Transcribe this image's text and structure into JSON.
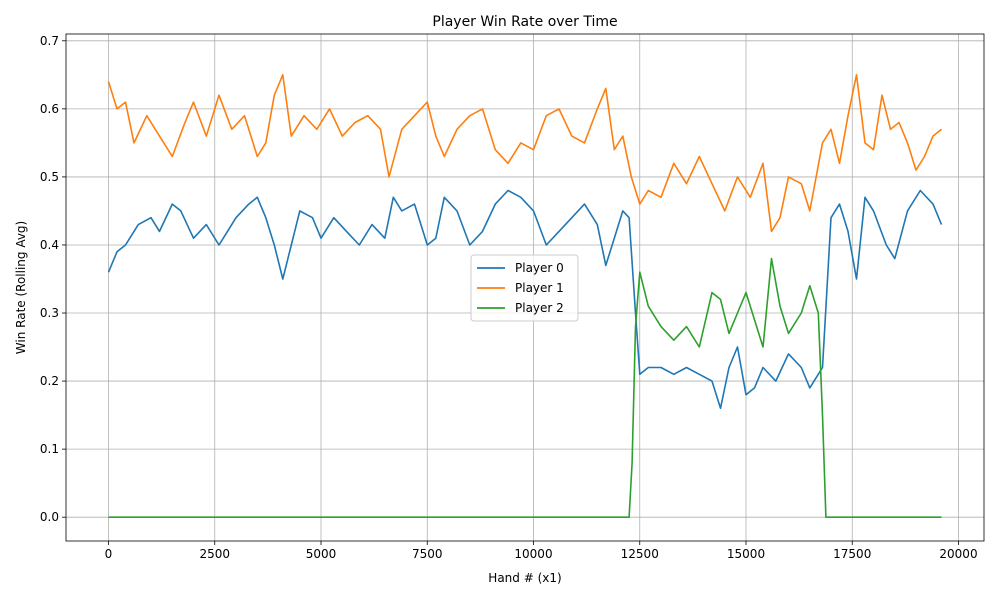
{
  "chart_data": {
    "type": "line",
    "title": "Player Win Rate over Time",
    "xlabel": "Hand # (x1)",
    "ylabel": "Win Rate (Rolling Avg)",
    "xlim": [
      -1000,
      20600
    ],
    "ylim": [
      -0.035,
      0.71
    ],
    "xticks": [
      0,
      2500,
      5000,
      7500,
      10000,
      12500,
      15000,
      17500,
      20000
    ],
    "yticks": [
      0.0,
      0.1,
      0.2,
      0.3,
      0.4,
      0.5,
      0.6,
      0.7
    ],
    "grid": true,
    "legend_position": "center",
    "series": [
      {
        "name": "Player 0",
        "color": "#1f77b4",
        "points": [
          [
            0,
            0.36
          ],
          [
            200,
            0.39
          ],
          [
            400,
            0.4
          ],
          [
            700,
            0.43
          ],
          [
            1000,
            0.44
          ],
          [
            1200,
            0.42
          ],
          [
            1500,
            0.46
          ],
          [
            1700,
            0.45
          ],
          [
            2000,
            0.41
          ],
          [
            2300,
            0.43
          ],
          [
            2600,
            0.4
          ],
          [
            2800,
            0.42
          ],
          [
            3000,
            0.44
          ],
          [
            3300,
            0.46
          ],
          [
            3500,
            0.47
          ],
          [
            3700,
            0.44
          ],
          [
            3900,
            0.4
          ],
          [
            4100,
            0.35
          ],
          [
            4300,
            0.4
          ],
          [
            4500,
            0.45
          ],
          [
            4800,
            0.44
          ],
          [
            5000,
            0.41
          ],
          [
            5300,
            0.44
          ],
          [
            5600,
            0.42
          ],
          [
            5900,
            0.4
          ],
          [
            6200,
            0.43
          ],
          [
            6500,
            0.41
          ],
          [
            6700,
            0.47
          ],
          [
            6900,
            0.45
          ],
          [
            7200,
            0.46
          ],
          [
            7500,
            0.4
          ],
          [
            7700,
            0.41
          ],
          [
            7900,
            0.47
          ],
          [
            8200,
            0.45
          ],
          [
            8500,
            0.4
          ],
          [
            8800,
            0.42
          ],
          [
            9100,
            0.46
          ],
          [
            9400,
            0.48
          ],
          [
            9700,
            0.47
          ],
          [
            10000,
            0.45
          ],
          [
            10300,
            0.4
          ],
          [
            10600,
            0.42
          ],
          [
            10900,
            0.44
          ],
          [
            11200,
            0.46
          ],
          [
            11500,
            0.43
          ],
          [
            11700,
            0.37
          ],
          [
            11900,
            0.41
          ],
          [
            12100,
            0.45
          ],
          [
            12250,
            0.44
          ],
          [
            12400,
            0.3
          ],
          [
            12500,
            0.21
          ],
          [
            12700,
            0.22
          ],
          [
            13000,
            0.22
          ],
          [
            13300,
            0.21
          ],
          [
            13600,
            0.22
          ],
          [
            13900,
            0.21
          ],
          [
            14200,
            0.2
          ],
          [
            14400,
            0.16
          ],
          [
            14600,
            0.22
          ],
          [
            14800,
            0.25
          ],
          [
            15000,
            0.18
          ],
          [
            15200,
            0.19
          ],
          [
            15400,
            0.22
          ],
          [
            15700,
            0.2
          ],
          [
            16000,
            0.24
          ],
          [
            16300,
            0.22
          ],
          [
            16500,
            0.19
          ],
          [
            16800,
            0.22
          ],
          [
            17000,
            0.44
          ],
          [
            17200,
            0.46
          ],
          [
            17400,
            0.42
          ],
          [
            17600,
            0.35
          ],
          [
            17800,
            0.47
          ],
          [
            18000,
            0.45
          ],
          [
            18300,
            0.4
          ],
          [
            18500,
            0.38
          ],
          [
            18800,
            0.45
          ],
          [
            19100,
            0.48
          ],
          [
            19400,
            0.46
          ],
          [
            19600,
            0.43
          ]
        ]
      },
      {
        "name": "Player 1",
        "color": "#ff7f0e",
        "points": [
          [
            0,
            0.64
          ],
          [
            200,
            0.6
          ],
          [
            400,
            0.61
          ],
          [
            600,
            0.55
          ],
          [
            900,
            0.59
          ],
          [
            1200,
            0.56
          ],
          [
            1500,
            0.53
          ],
          [
            1800,
            0.58
          ],
          [
            2000,
            0.61
          ],
          [
            2300,
            0.56
          ],
          [
            2600,
            0.62
          ],
          [
            2900,
            0.57
          ],
          [
            3200,
            0.59
          ],
          [
            3500,
            0.53
          ],
          [
            3700,
            0.55
          ],
          [
            3900,
            0.62
          ],
          [
            4100,
            0.65
          ],
          [
            4300,
            0.56
          ],
          [
            4600,
            0.59
          ],
          [
            4900,
            0.57
          ],
          [
            5200,
            0.6
          ],
          [
            5500,
            0.56
          ],
          [
            5800,
            0.58
          ],
          [
            6100,
            0.59
          ],
          [
            6400,
            0.57
          ],
          [
            6600,
            0.5
          ],
          [
            6900,
            0.57
          ],
          [
            7200,
            0.59
          ],
          [
            7500,
            0.61
          ],
          [
            7700,
            0.56
          ],
          [
            7900,
            0.53
          ],
          [
            8200,
            0.57
          ],
          [
            8500,
            0.59
          ],
          [
            8800,
            0.6
          ],
          [
            9100,
            0.54
          ],
          [
            9400,
            0.52
          ],
          [
            9700,
            0.55
          ],
          [
            10000,
            0.54
          ],
          [
            10300,
            0.59
          ],
          [
            10600,
            0.6
          ],
          [
            10900,
            0.56
          ],
          [
            11200,
            0.55
          ],
          [
            11500,
            0.6
          ],
          [
            11700,
            0.63
          ],
          [
            11900,
            0.54
          ],
          [
            12100,
            0.56
          ],
          [
            12300,
            0.5
          ],
          [
            12500,
            0.46
          ],
          [
            12700,
            0.48
          ],
          [
            13000,
            0.47
          ],
          [
            13300,
            0.52
          ],
          [
            13600,
            0.49
          ],
          [
            13900,
            0.53
          ],
          [
            14200,
            0.49
          ],
          [
            14500,
            0.45
          ],
          [
            14800,
            0.5
          ],
          [
            15100,
            0.47
          ],
          [
            15400,
            0.52
          ],
          [
            15600,
            0.42
          ],
          [
            15800,
            0.44
          ],
          [
            16000,
            0.5
          ],
          [
            16300,
            0.49
          ],
          [
            16500,
            0.45
          ],
          [
            16800,
            0.55
          ],
          [
            17000,
            0.57
          ],
          [
            17200,
            0.52
          ],
          [
            17400,
            0.59
          ],
          [
            17600,
            0.65
          ],
          [
            17800,
            0.55
          ],
          [
            18000,
            0.54
          ],
          [
            18200,
            0.62
          ],
          [
            18400,
            0.57
          ],
          [
            18600,
            0.58
          ],
          [
            18800,
            0.55
          ],
          [
            19000,
            0.51
          ],
          [
            19200,
            0.53
          ],
          [
            19400,
            0.56
          ],
          [
            19600,
            0.57
          ]
        ]
      },
      {
        "name": "Player 2",
        "color": "#2ca02c",
        "points": [
          [
            0,
            0.0
          ],
          [
            12250,
            0.0
          ],
          [
            12320,
            0.08
          ],
          [
            12400,
            0.28
          ],
          [
            12500,
            0.36
          ],
          [
            12700,
            0.31
          ],
          [
            13000,
            0.28
          ],
          [
            13300,
            0.26
          ],
          [
            13600,
            0.28
          ],
          [
            13900,
            0.25
          ],
          [
            14200,
            0.33
          ],
          [
            14400,
            0.32
          ],
          [
            14600,
            0.27
          ],
          [
            14800,
            0.3
          ],
          [
            15000,
            0.33
          ],
          [
            15200,
            0.29
          ],
          [
            15400,
            0.25
          ],
          [
            15600,
            0.38
          ],
          [
            15800,
            0.31
          ],
          [
            16000,
            0.27
          ],
          [
            16300,
            0.3
          ],
          [
            16500,
            0.34
          ],
          [
            16700,
            0.3
          ],
          [
            16800,
            0.15
          ],
          [
            16880,
            0.0
          ],
          [
            19600,
            0.0
          ]
        ]
      }
    ]
  }
}
